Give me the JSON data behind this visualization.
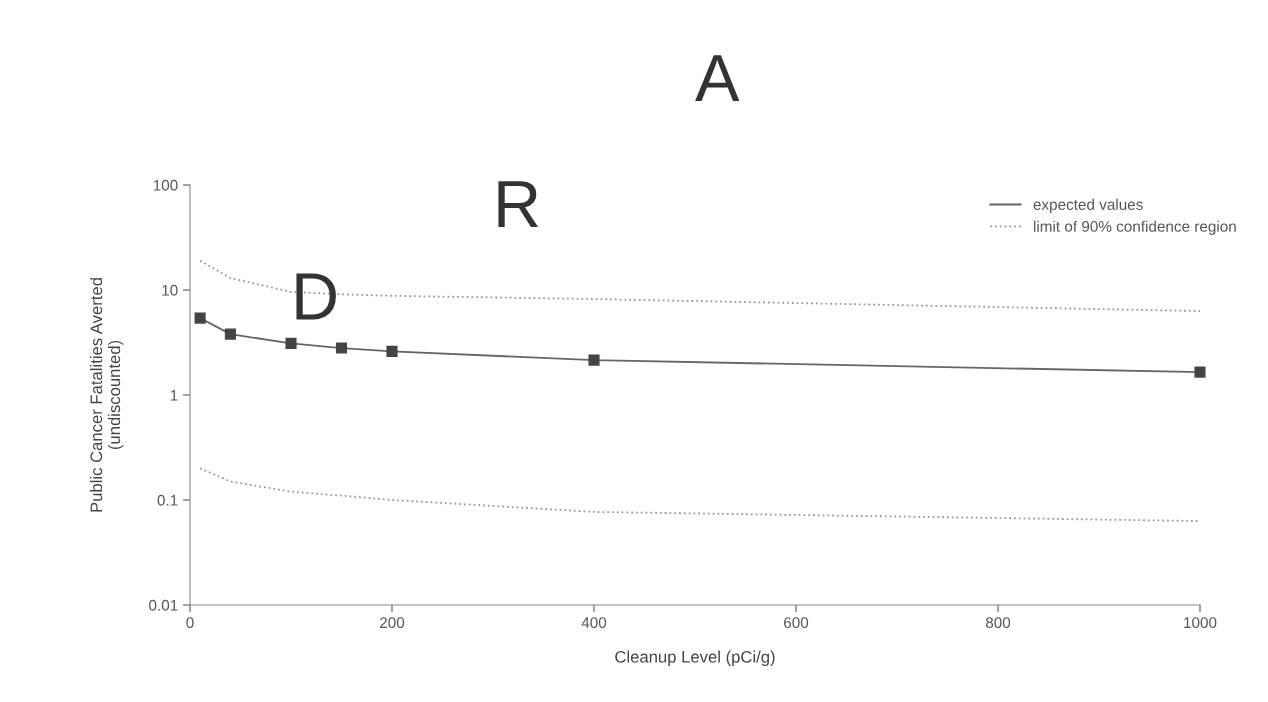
{
  "chart_data": {
    "type": "line",
    "xlabel": "Cleanup Level (pCi/g)",
    "ylabel": "Public Cancer Fatalities Averted\n(undiscounted)",
    "x": [
      10,
      40,
      100,
      150,
      200,
      400,
      1000
    ],
    "series": [
      {
        "name": "expected values",
        "color": "#666666",
        "values": [
          5.4,
          3.8,
          3.1,
          2.8,
          2.6,
          2.15,
          1.65
        ],
        "marker": "square",
        "line_style": "solid"
      },
      {
        "name": "limit of 90% confidence region",
        "color": "#999999",
        "values": [
          19,
          13,
          9.6,
          9.1,
          8.8,
          8.2,
          6.3
        ],
        "marker": "none",
        "line_style": "dotted"
      },
      {
        "color": "#999999",
        "values": [
          0.2,
          0.15,
          0.12,
          0.11,
          0.1,
          0.077,
          0.063
        ],
        "marker": "none",
        "line_style": "dotted"
      }
    ],
    "log": "y",
    "xlim": [
      0,
      1000
    ],
    "ylim": [
      0.01,
      100
    ],
    "xticks": [
      0,
      200,
      400,
      600,
      800,
      1000
    ],
    "yticks": [
      0.01,
      0.1,
      1,
      10,
      100
    ],
    "grid": false,
    "legend": "top right",
    "annotations": [
      "D",
      "R",
      "A"
    ]
  }
}
